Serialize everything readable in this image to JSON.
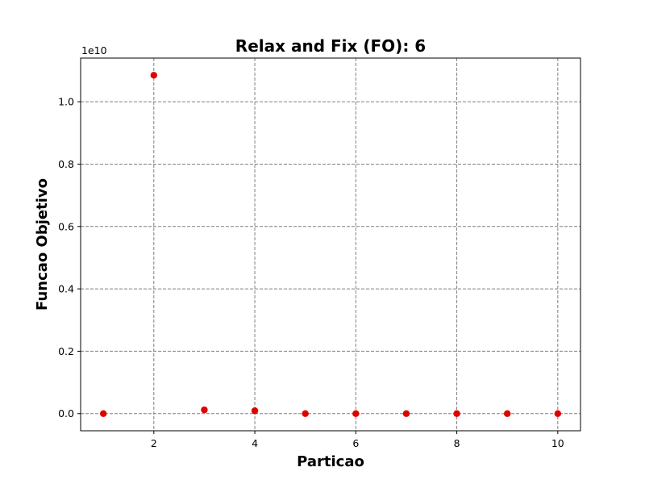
{
  "chart_data": {
    "type": "scatter",
    "title": "Relax and Fix (FO): 6",
    "xlabel": "Particao",
    "ylabel": "Funcao Objetivo",
    "y_offset_label": "1e10",
    "x": [
      1,
      2,
      3,
      4,
      5,
      6,
      7,
      8,
      9,
      10
    ],
    "y": [
      0.0,
      1.085,
      0.012,
      0.009,
      0.0,
      0.0,
      0.0,
      0.0,
      0.0,
      0.0
    ],
    "y_scale_multiplier": 10000000000,
    "xlim": [
      0.55,
      10.45
    ],
    "ylim": [
      -0.055,
      1.14
    ],
    "x_ticks": [
      2,
      4,
      6,
      8,
      10
    ],
    "x_tick_labels": [
      "2",
      "4",
      "6",
      "8",
      "10"
    ],
    "y_ticks": [
      0.0,
      0.2,
      0.4,
      0.6,
      0.8,
      1.0
    ],
    "y_tick_labels": [
      "0.0",
      "0.2",
      "0.4",
      "0.6",
      "0.8",
      "1.0"
    ],
    "grid": true,
    "marker_color": "#e00000",
    "grid_color": "#808080"
  }
}
